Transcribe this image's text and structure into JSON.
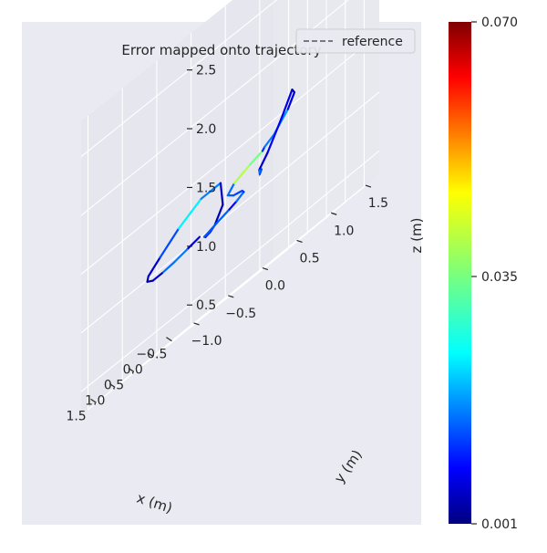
{
  "chart_data": {
    "type": "line",
    "title": "Error mapped onto trajectory",
    "legend": {
      "placement": "top-right",
      "entries": [
        {
          "label": "reference",
          "style": "dashed",
          "color": "#555555"
        }
      ]
    },
    "axes": {
      "x": {
        "label": "x (m)",
        "ticks": [
          "−0.5",
          "0.0",
          "0.5",
          "1.0",
          "1.5"
        ],
        "range": [
          -0.9,
          1.9
        ]
      },
      "y": {
        "label": "y (m)",
        "ticks": [
          "−1.0",
          "−0.5",
          "0.0",
          "0.5",
          "1.0",
          "1.5"
        ],
        "range": [
          -1.1,
          1.7
        ]
      },
      "z": {
        "label": "z (m)",
        "ticks": [
          "0.5",
          "1.0",
          "1.5",
          "2.0",
          "2.5"
        ],
        "range": [
          0.3,
          2.8
        ]
      }
    },
    "grid": true,
    "colorbar": {
      "colormap": "jet",
      "min": 0.001,
      "max": 0.07,
      "tick_values": [
        0.001,
        0.035,
        0.07
      ],
      "ticks": [
        "0.001",
        "0.035",
        "0.070"
      ]
    },
    "series": [
      {
        "x": [
          0.4,
          0.55,
          0.7,
          0.85,
          1.0,
          1.15,
          1.3,
          1.45,
          1.5,
          1.45,
          1.3,
          1.15,
          1.0,
          0.85,
          0.7,
          0.55,
          0.4,
          0.25,
          0.15,
          0.05,
          0.0,
          0.05,
          0.2,
          0.3,
          0.25,
          0.1,
          -0.05,
          -0.2,
          -0.3,
          -0.2,
          -0.05,
          0.05,
          0.15,
          0.1,
          0.0,
          -0.1,
          -0.15
        ],
        "y": [
          -0.2,
          -0.3,
          -0.4,
          -0.5,
          -0.55,
          -0.55,
          -0.45,
          -0.2,
          0.1,
          0.4,
          0.6,
          0.55,
          0.35,
          0.2,
          0.05,
          -0.05,
          0.05,
          0.15,
          0.2,
          0.25,
          0.2,
          0.1,
          0.1,
          0.25,
          0.45,
          0.55,
          0.5,
          0.55,
          0.7,
          0.85,
          0.9,
          0.8,
          0.65,
          0.5,
          0.45,
          0.4,
          0.4
        ],
        "z": [
          1.0,
          0.98,
          0.96,
          0.95,
          0.95,
          0.98,
          1.02,
          1.1,
          1.22,
          1.32,
          1.32,
          1.12,
          1.0,
          0.97,
          0.96,
          0.97,
          1.0,
          1.03,
          1.05,
          1.08,
          1.1,
          1.12,
          1.16,
          1.22,
          1.27,
          1.3,
          1.32,
          1.36,
          1.48,
          1.58,
          1.62,
          1.45,
          1.25,
          1.16,
          1.14,
          1.12,
          1.15
        ],
        "error": [
          0.004,
          0.01,
          0.026,
          0.008,
          0.004,
          0.003,
          0.005,
          0.007,
          0.022,
          0.03,
          0.006,
          0.004,
          0.005,
          0.02,
          0.006,
          0.005,
          0.026,
          0.006,
          0.014,
          0.02,
          0.004,
          0.024,
          0.006,
          0.028,
          0.05,
          0.02,
          0.006,
          0.03,
          0.01,
          0.005,
          0.004,
          0.012,
          0.006,
          0.006,
          0.03,
          0.01,
          0.02
        ]
      }
    ]
  }
}
